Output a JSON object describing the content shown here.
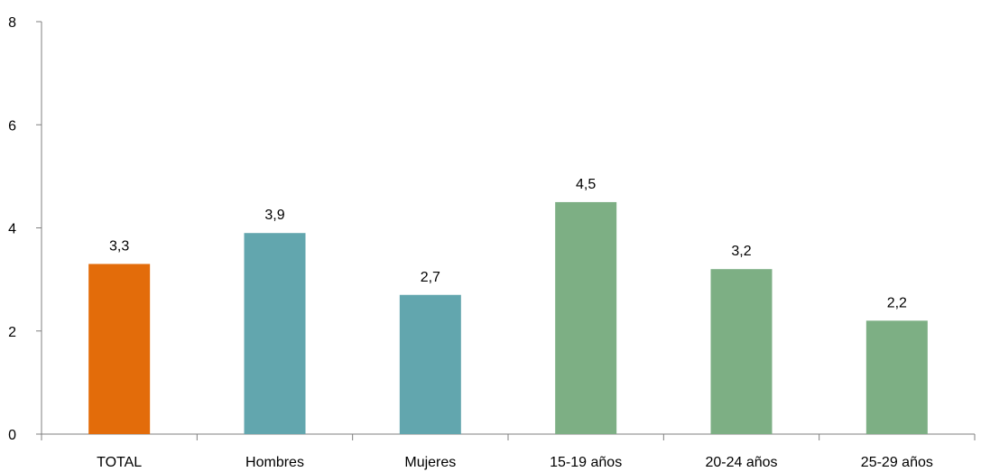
{
  "chart_data": {
    "type": "bar",
    "title": "",
    "xlabel": "",
    "ylabel": "",
    "ylim": [
      0,
      8
    ],
    "yticks": [
      0,
      2,
      4,
      6,
      8
    ],
    "grid": false,
    "legend": "none",
    "categories": [
      "TOTAL",
      "Hombres",
      "Mujeres",
      "15-19 años",
      "20-24 años",
      "25-29 años"
    ],
    "values": [
      3.3,
      3.9,
      2.7,
      4.5,
      3.2,
      2.2
    ],
    "value_labels": [
      "3,3",
      "3,9",
      "2,7",
      "4,5",
      "3,2",
      "2,2"
    ],
    "colors": [
      "#E36C0A",
      "#62A6AE",
      "#62A6AE",
      "#7DAF84",
      "#7DAF84",
      "#7DAF84"
    ]
  }
}
